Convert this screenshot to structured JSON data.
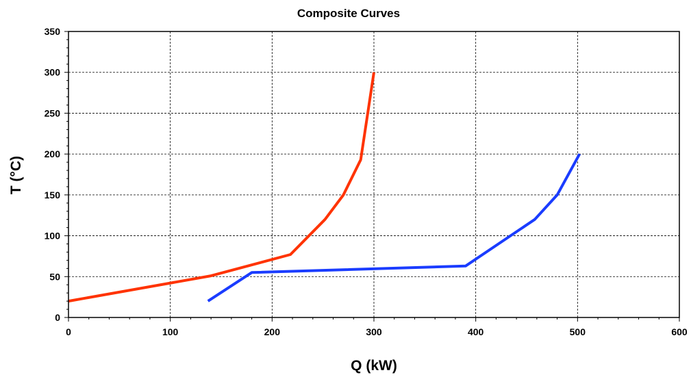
{
  "chart_data": {
    "type": "line",
    "title": "Composite Curves",
    "xlabel": "Q (kW)",
    "ylabel": "T (°C)",
    "xlim": [
      0,
      600
    ],
    "ylim": [
      0,
      350
    ],
    "xticks": [
      "0",
      "100",
      "200",
      "300",
      "400",
      "500",
      "600"
    ],
    "yticks": [
      "0",
      "50",
      "100",
      "150",
      "200",
      "250",
      "300",
      "350"
    ],
    "grid": true,
    "series": [
      {
        "color": "#ff3300",
        "x": [
          0,
          140,
          218,
          252,
          270,
          287,
          300
        ],
        "y": [
          20,
          51,
          77,
          120,
          150,
          193,
          300
        ]
      },
      {
        "color": "#1a3cff",
        "x": [
          137,
          180,
          390,
          458,
          480,
          502
        ],
        "y": [
          20,
          55,
          63,
          120,
          150,
          200
        ]
      }
    ]
  }
}
